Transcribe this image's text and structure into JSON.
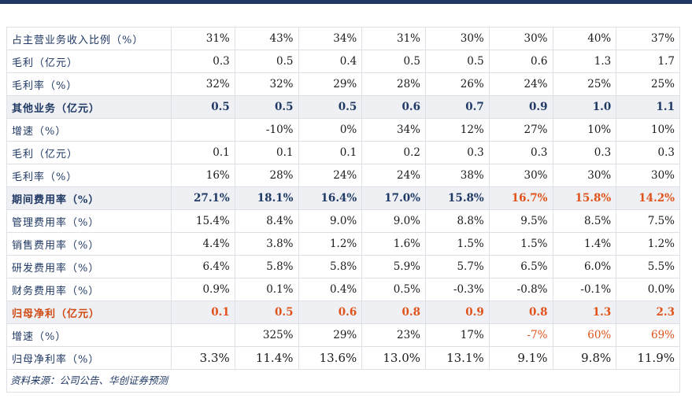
{
  "table": {
    "rows": [
      {
        "label": "占主营业务收入比例（%）",
        "values": [
          "31%",
          "43%",
          "34%",
          "31%",
          "30%",
          "30%",
          "40%",
          "37%"
        ],
        "style": ""
      },
      {
        "label": "毛利（亿元）",
        "values": [
          "0.3",
          "0.5",
          "0.4",
          "0.5",
          "0.5",
          "0.6",
          "1.3",
          "1.7"
        ],
        "style": ""
      },
      {
        "label": "毛利率（%）",
        "values": [
          "32%",
          "32%",
          "29%",
          "28%",
          "26%",
          "24%",
          "25%",
          "25%"
        ],
        "style": ""
      },
      {
        "label": "其他业务（亿元）",
        "values": [
          "0.5",
          "0.5",
          "0.5",
          "0.6",
          "0.7",
          "0.9",
          "1.0",
          "1.1"
        ],
        "style": "hl"
      },
      {
        "label": "增速（%）",
        "values": [
          "",
          "-10%",
          "0%",
          "34%",
          "12%",
          "27%",
          "10%",
          "10%"
        ],
        "style": ""
      },
      {
        "label": "毛利（亿元）",
        "values": [
          "0.1",
          "0.1",
          "0.1",
          "0.2",
          "0.3",
          "0.3",
          "0.3",
          "0.3"
        ],
        "style": ""
      },
      {
        "label": "毛利率（%）",
        "values": [
          "16%",
          "28%",
          "24%",
          "24%",
          "38%",
          "30%",
          "30%",
          "30%"
        ],
        "style": ""
      },
      {
        "label": "期间费用率（%）",
        "values": [
          "27.1%",
          "18.1%",
          "16.4%",
          "17.0%",
          "15.8%",
          "16.7%",
          "15.8%",
          "14.2%"
        ],
        "style": "hl",
        "accent_from": 5
      },
      {
        "label": "管理费用率（%）",
        "values": [
          "15.4%",
          "8.4%",
          "9.0%",
          "9.0%",
          "8.8%",
          "9.5%",
          "8.5%",
          "7.5%"
        ],
        "style": ""
      },
      {
        "label": "销售费用率（%）",
        "values": [
          "4.4%",
          "3.8%",
          "1.2%",
          "1.6%",
          "1.5%",
          "1.5%",
          "1.4%",
          "1.2%"
        ],
        "style": ""
      },
      {
        "label": "研发费用率（%）",
        "values": [
          "6.4%",
          "5.8%",
          "5.8%",
          "5.9%",
          "5.7%",
          "6.5%",
          "6.0%",
          "5.5%"
        ],
        "style": ""
      },
      {
        "label": "财务费用率（%）",
        "values": [
          "0.9%",
          "0.1%",
          "0.4%",
          "0.5%",
          "-0.3%",
          "-0.8%",
          "-0.1%",
          "0.0%"
        ],
        "style": ""
      },
      {
        "label": "归母净利（亿元）",
        "values": [
          "0.1",
          "0.5",
          "0.6",
          "0.8",
          "0.9",
          "0.8",
          "1.3",
          "2.3"
        ],
        "style": "hl red",
        "accent_from": 0
      },
      {
        "label": "增速（%）",
        "values": [
          "",
          "325%",
          "29%",
          "23%",
          "17%",
          "-7%",
          "60%",
          "69%"
        ],
        "style": "",
        "accent_from": 5
      },
      {
        "label": "归母净利率（%）",
        "values": [
          "3.3%",
          "11.4%",
          "13.6%",
          "13.0%",
          "13.1%",
          "9.1%",
          "9.8%",
          "11.9%"
        ],
        "style": "big"
      }
    ]
  },
  "source": "资料来源：公司公告、华创证券预测",
  "colors": {
    "header_bar": "#1f3864",
    "label": "#1f3864",
    "accent": "#e0521a",
    "highlight_bg": "#eef0f3"
  }
}
